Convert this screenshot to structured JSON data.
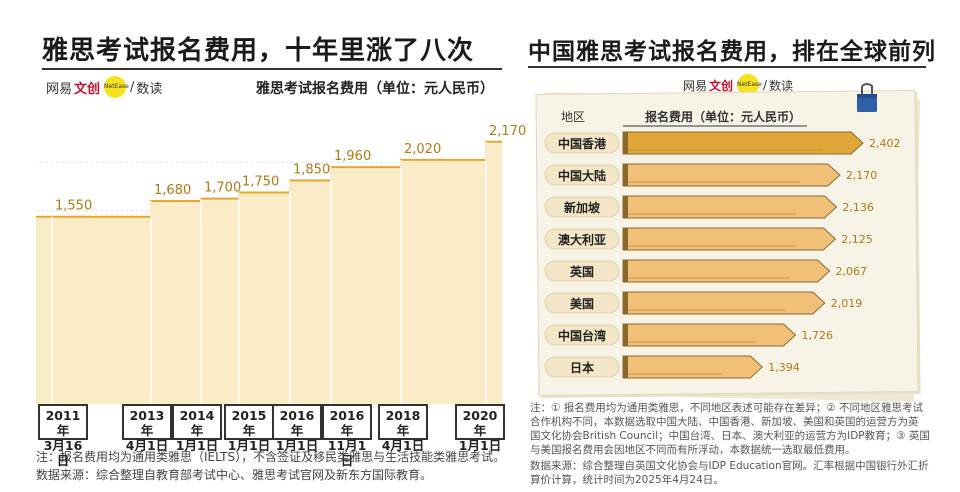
{
  "left": {
    "title": "雅思考试报名费用，十年里涨了八次",
    "brand_a": "网易",
    "brand_b": "文创",
    "brand_c": "数读",
    "dot_text": "NetEase",
    "unit_label": "雅思考试报名费用（单位：元人民币）",
    "note_1": "注：报名费用均为通用类雅思（IELTS），不含签证及移民类雅思与生活技能类雅思考试。",
    "note_2": "数据来源：综合整理自教育部考试中心、雅思考试官网及新东方国际教育。"
  },
  "right": {
    "title": "中国雅思考试报名费用，排在全球前列",
    "col_region": "地区",
    "col_fee": "报名费用（单位：元人民币）",
    "note_1": "注：① 报名费用均为通用类雅思，不同地区表述可能存在差异；② 不同地区雅思考试",
    "note_2": "合作机构不同，本数据选取中国大陆、中国香港、新加坡、美国和英国的运营方为英",
    "note_3": "国文化协会British Council；中国台湾、日本、澳大利亚的运营方为IDP教育；③ 英国",
    "note_4": "与美国报名费用会因地区不同而有所浮动，本数据统一选取最低费用。",
    "source_1": "数据来源：综合整理自英国文化协会与IDP Education官网。汇率根据中国银行外汇折",
    "source_2": "算价计算，统计时间为2025年4月24日。"
  },
  "chart_data": [
    {
      "type": "area",
      "title": "雅思考试报名费用，十年里涨了八次",
      "ylabel": "雅思考试报名费用（单位：元人民币）",
      "x": [
        "2011年3月16日",
        "2013年4月1日",
        "2014年1月1日",
        "2015年1月1日",
        "2016年1月1日",
        "2016年11月1日",
        "2018年4月1日",
        "2020年1月1日"
      ],
      "x_line1": [
        "2011年",
        "2013年",
        "2014年",
        "2015年",
        "2016年",
        "2016年",
        "2018年",
        "2020年"
      ],
      "x_line2": [
        "3月16日",
        "4月1日",
        "1月1日",
        "1月1日",
        "1月1日",
        "11月1日",
        "4月1日",
        "1月1日"
      ],
      "values": [
        1550,
        1680,
        1700,
        1750,
        1850,
        1960,
        2020,
        2170
      ],
      "value_labels": [
        "1,550",
        "1,680",
        "1,700",
        "1,750",
        "1,850",
        "1,960",
        "2,020",
        "2,170"
      ],
      "ylim": [
        0,
        2400
      ],
      "grid": true,
      "step": true
    },
    {
      "type": "bar",
      "orientation": "horizontal",
      "title": "中国雅思考试报名费用，排在全球前列",
      "categories": [
        "中国香港",
        "中国大陆",
        "新加坡",
        "澳大利亚",
        "英国",
        "美国",
        "中国台湾",
        "日本"
      ],
      "values": [
        2402,
        2170,
        2136,
        2125,
        2067,
        2019,
        1726,
        1394
      ],
      "value_labels": [
        "2,402",
        "2,170",
        "2,136",
        "2,125",
        "2,067",
        "2,019",
        "1,726",
        "1,394"
      ],
      "highlight": "中国香港",
      "colors": {
        "highlight": "#e0a63a",
        "normal": "#f0c078",
        "label": "#b07a14"
      }
    }
  ]
}
